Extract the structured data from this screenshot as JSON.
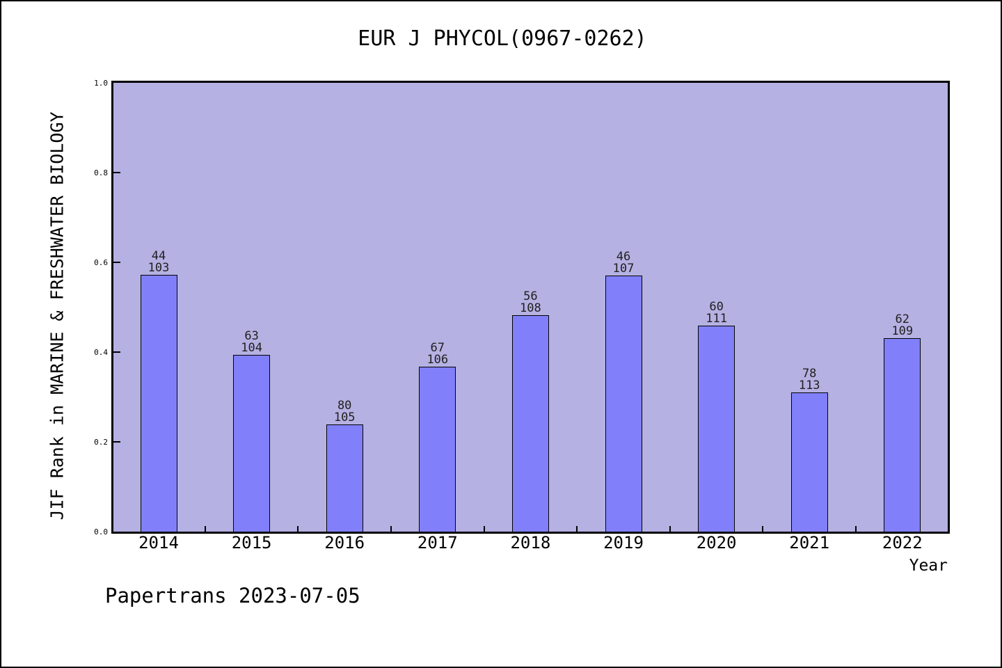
{
  "chart": {
    "title": "EUR J PHYCOL(0967-0262)",
    "xlabel": "Year",
    "ylabel": "JIF Rank in MARINE & FRESHWATER BIOLOGY",
    "footer": "Papertrans 2023-07-05"
  },
  "chart_data": {
    "type": "bar",
    "title": "EUR J PHYCOL(0967-0262)",
    "xlabel": "Year",
    "ylabel": "JIF Rank in MARINE & FRESHWATER BIOLOGY",
    "footer": "Papertrans 2023-07-05",
    "categories": [
      "2014",
      "2015",
      "2016",
      "2017",
      "2018",
      "2019",
      "2020",
      "2021",
      "2022"
    ],
    "series": [
      {
        "name": "JIF Rank",
        "ranks": [
          44,
          63,
          80,
          67,
          56,
          46,
          60,
          78,
          62
        ],
        "totals": [
          103,
          104,
          105,
          106,
          108,
          107,
          111,
          113,
          109
        ],
        "values": [
          0.5728,
          0.3942,
          0.2381,
          0.3679,
          0.4815,
          0.5701,
          0.4595,
          0.3097,
          0.4312
        ]
      }
    ],
    "bar_labels": [
      [
        "44",
        "103"
      ],
      [
        "63",
        "104"
      ],
      [
        "80",
        "105"
      ],
      [
        "67",
        "106"
      ],
      [
        "56",
        "108"
      ],
      [
        "46",
        "107"
      ],
      [
        "60",
        "111"
      ],
      [
        "78",
        "113"
      ],
      [
        "62",
        "109"
      ]
    ],
    "ylim": [
      0.0,
      1.0
    ],
    "ytick_labels": [
      "0.0",
      "0.2",
      "0.4",
      "0.6",
      "0.8",
      "1.0"
    ],
    "grid": false,
    "legend": false,
    "colors": {
      "bar_fill": "#8180fa",
      "bar_edge": "#000000",
      "plot_background": "#b5b1e2",
      "figure_background": "#ffffff",
      "text": "#000000"
    }
  }
}
